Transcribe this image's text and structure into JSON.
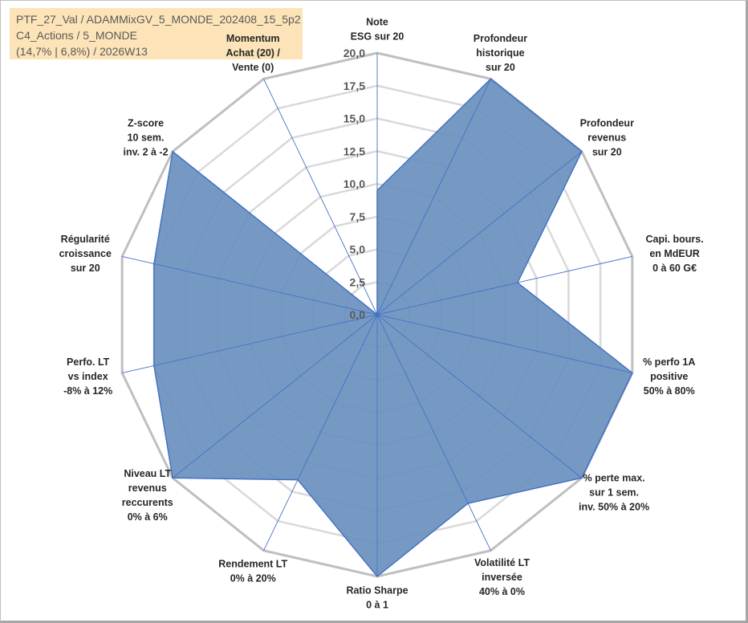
{
  "info": {
    "line1": "PTF_27_Val / ADAMMixGV_5_MONDE_202408_15_5p2",
    "line2": "C4_Actions / 5_MONDE",
    "line3": "(14,7% | 6,8%) / 2026W13"
  },
  "chart_data": {
    "type": "radar",
    "rmax": 20,
    "ticks": [
      "0,0",
      "2,5",
      "5,0",
      "7,5",
      "10,0",
      "12,5",
      "15,0",
      "17,5",
      "20,0"
    ],
    "tick_values": [
      0,
      2.5,
      5,
      7.5,
      10,
      12.5,
      15,
      17.5,
      20
    ],
    "fill_color": "#6a90bf",
    "line_color": "#4472c4",
    "grid_color": "#bfbfbf",
    "axes": [
      {
        "lines": [
          "Note",
          "ESG sur 20"
        ],
        "value": 9.5,
        "highlight": null
      },
      {
        "lines": [
          "Profondeur",
          "historique",
          "sur 20"
        ],
        "value": 20,
        "highlight": null
      },
      {
        "lines": [
          "Profondeur",
          "revenus",
          "sur 20"
        ],
        "value": 20,
        "highlight": null
      },
      {
        "lines": [
          "Capi. bours.",
          "en MdEUR",
          "0 à 60 G€"
        ],
        "value": 11,
        "highlight": null
      },
      {
        "lines": [
          "% perfo 1A",
          "positive",
          "50% à 80%"
        ],
        "value": 20,
        "highlight": null
      },
      {
        "lines": [
          "% perte max.",
          "sur 1 sem.",
          "inv. 50% à 20%"
        ],
        "value": 20,
        "highlight": null
      },
      {
        "lines": [
          "Volatilité LT",
          "inversée",
          "40% à 0%"
        ],
        "value": 16,
        "highlight": null
      },
      {
        "lines": [
          "Ratio Sharpe",
          "0 à 1"
        ],
        "value": 20,
        "highlight": null
      },
      {
        "lines": [
          "Rendement LT",
          "0% à 20%"
        ],
        "value": 14,
        "highlight": null
      },
      {
        "lines": [
          "Niveau LT",
          "revenus",
          "reccurents",
          "0% à 6%"
        ],
        "value": 20,
        "highlight": null
      },
      {
        "lines": [
          "Perfo. LT",
          "vs index",
          "-8% à 12%"
        ],
        "value": 17.5,
        "highlight": null
      },
      {
        "lines": [
          "Régularité",
          "croissance",
          "sur 20"
        ],
        "value": 17.5,
        "highlight": null
      },
      {
        "lines": [
          "Z-score",
          "10 sem.",
          "inv. 2 à -2"
        ],
        "value": 20,
        "highlight": null
      },
      {
        "lines": [
          "Momentum",
          "Achat (20) /",
          "Vente (0)"
        ],
        "value": 0,
        "highlight": "Momentum"
      }
    ],
    "highlight_color": "#a6a6a6"
  }
}
